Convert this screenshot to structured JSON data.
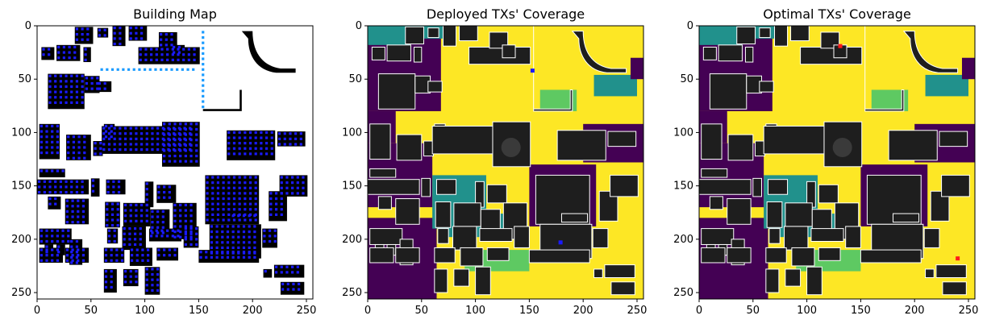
{
  "figure": {
    "background": "#ffffff"
  },
  "chart_data": [
    {
      "type": "heatmap",
      "title": "Building Map",
      "xlim": [
        0,
        256
      ],
      "ylim": [
        256,
        0
      ],
      "xticks": [
        0,
        50,
        100,
        150,
        200,
        250
      ],
      "yticks": [
        0,
        50,
        100,
        150,
        200,
        250
      ],
      "grid": false,
      "legend": "none",
      "colors": {
        "free_space": "#ffffff",
        "building": "#000000",
        "candidate_tx": "#1a1aff",
        "candidate_tx_edge": "#1a9bff"
      }
    },
    {
      "type": "heatmap",
      "title": "Deployed TXs' Coverage",
      "xlim": [
        0,
        256
      ],
      "ylim": [
        256,
        0
      ],
      "xticks": [
        0,
        50,
        100,
        150,
        200,
        250
      ],
      "yticks": [
        0,
        50,
        100,
        150,
        200,
        250
      ],
      "grid": false,
      "legend": "none",
      "colors": {
        "strong": "#fde725",
        "good": "#5ec962",
        "weak": "#21918c",
        "none": "#440154",
        "building": "#1e1e1e",
        "building_edge": "#ffffff",
        "tx_marker": "#1a1aff"
      },
      "tx_markers": [
        {
          "x": 153,
          "y": 42
        },
        {
          "x": 179,
          "y": 203
        }
      ]
    },
    {
      "type": "heatmap",
      "title": "Optimal TXs' Coverage",
      "xlim": [
        0,
        256
      ],
      "ylim": [
        256,
        0
      ],
      "xticks": [
        0,
        50,
        100,
        150,
        200,
        250
      ],
      "yticks": [
        0,
        50,
        100,
        150,
        200,
        250
      ],
      "grid": false,
      "legend": "none",
      "colors": {
        "strong": "#fde725",
        "good": "#5ec962",
        "weak": "#21918c",
        "none": "#440154",
        "building": "#1e1e1e",
        "building_edge": "#ffffff",
        "tx_marker": "#ff1a1a"
      },
      "tx_markers": [
        {
          "x": 131,
          "y": 19
        },
        {
          "x": 240,
          "y": 218
        }
      ]
    }
  ]
}
